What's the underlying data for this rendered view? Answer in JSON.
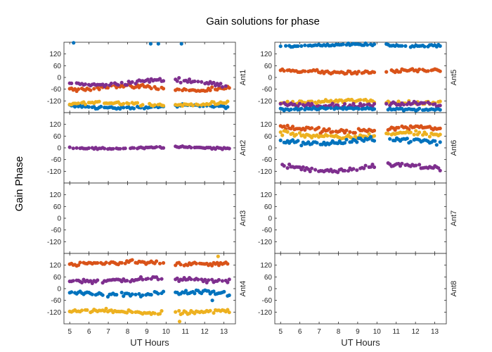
{
  "chart_data": {
    "type": "scatter",
    "title": "Gain solutions for phase",
    "ylabel": "Gain Phase",
    "xlabel": "UT Hours",
    "xlim": [
      4.7,
      13.6
    ],
    "ylim": [
      -180,
      180
    ],
    "xticks": [
      5,
      6,
      7,
      8,
      9,
      10,
      11,
      12,
      13
    ],
    "yticks": [
      -120,
      -60,
      0,
      60,
      120
    ],
    "series_colors": [
      "#0072BD",
      "#D95319",
      "#EDB120",
      "#7E2F8E",
      "#77AC30"
    ],
    "gap": [
      9.9,
      10.4
    ],
    "panels": [
      {
        "label": "Ant1",
        "column": 0,
        "row": 0,
        "series": [
          {
            "color": "#0072BD",
            "mean": -150,
            "spread": 6,
            "amp": 6,
            "outliers": [
              [
                5.2,
                177
              ],
              [
                9.2,
                172
              ],
              [
                9.6,
                172
              ],
              [
                10.8,
                172
              ]
            ]
          },
          {
            "color": "#D95319",
            "mean": -55,
            "spread": 8,
            "amp": 12,
            "outliers": []
          },
          {
            "color": "#EDB120",
            "mean": -135,
            "spread": 6,
            "amp": 6,
            "outliers": []
          },
          {
            "color": "#7E2F8E",
            "mean": -25,
            "spread": 8,
            "amp": 14,
            "outliers": []
          }
        ]
      },
      {
        "label": "Ant2",
        "column": 0,
        "row": 1,
        "series": [
          {
            "color": "#7E2F8E",
            "mean": 0,
            "spread": 4,
            "amp": 4,
            "outliers": []
          }
        ]
      },
      {
        "label": "Ant3",
        "column": 0,
        "row": 2,
        "series": []
      },
      {
        "label": "Ant4",
        "column": 0,
        "row": 3,
        "series": [
          {
            "color": "#D95319",
            "mean": 130,
            "spread": 8,
            "amp": 5,
            "outliers": []
          },
          {
            "color": "#7E2F8E",
            "mean": 45,
            "spread": 8,
            "amp": 6,
            "outliers": []
          },
          {
            "color": "#0072BD",
            "mean": -25,
            "spread": 10,
            "amp": 6,
            "outliers": [
              [
                12.4,
                -60
              ]
            ]
          },
          {
            "color": "#EDB120",
            "mean": -120,
            "spread": 8,
            "amp": 6,
            "outliers": [
              [
                10.7,
                -168
              ],
              [
                12.7,
                165
              ]
            ]
          }
        ]
      },
      {
        "label": "Ant5",
        "column": 1,
        "row": 0,
        "series": [
          {
            "color": "#0072BD",
            "mean": 165,
            "spread": 5,
            "amp": 4,
            "outliers": []
          },
          {
            "color": "#D95319",
            "mean": 30,
            "spread": 7,
            "amp": 6,
            "outliers": []
          },
          {
            "color": "#EDB120",
            "mean": -125,
            "spread": 7,
            "amp": 6,
            "outliers": []
          },
          {
            "color": "#7E2F8E",
            "mean": -140,
            "spread": 8,
            "amp": 6,
            "outliers": []
          },
          {
            "color": "#0072BD",
            "mean": -160,
            "spread": 5,
            "amp": 3,
            "outliers": []
          }
        ]
      },
      {
        "label": "Ant6",
        "column": 1,
        "row": 1,
        "series": [
          {
            "color": "#D95319",
            "mean": 95,
            "spread": 10,
            "amp": 12,
            "outliers": []
          },
          {
            "color": "#EDB120",
            "mean": 65,
            "spread": 10,
            "amp": 12,
            "outliers": []
          },
          {
            "color": "#0072BD",
            "mean": 35,
            "spread": 10,
            "amp": 12,
            "outliers": []
          },
          {
            "color": "#7E2F8E",
            "mean": -100,
            "spread": 10,
            "amp": 14,
            "outliers": []
          }
        ]
      },
      {
        "label": "Ant7",
        "column": 1,
        "row": 2,
        "series": []
      },
      {
        "label": "Ant8",
        "column": 1,
        "row": 3,
        "series": []
      }
    ]
  }
}
